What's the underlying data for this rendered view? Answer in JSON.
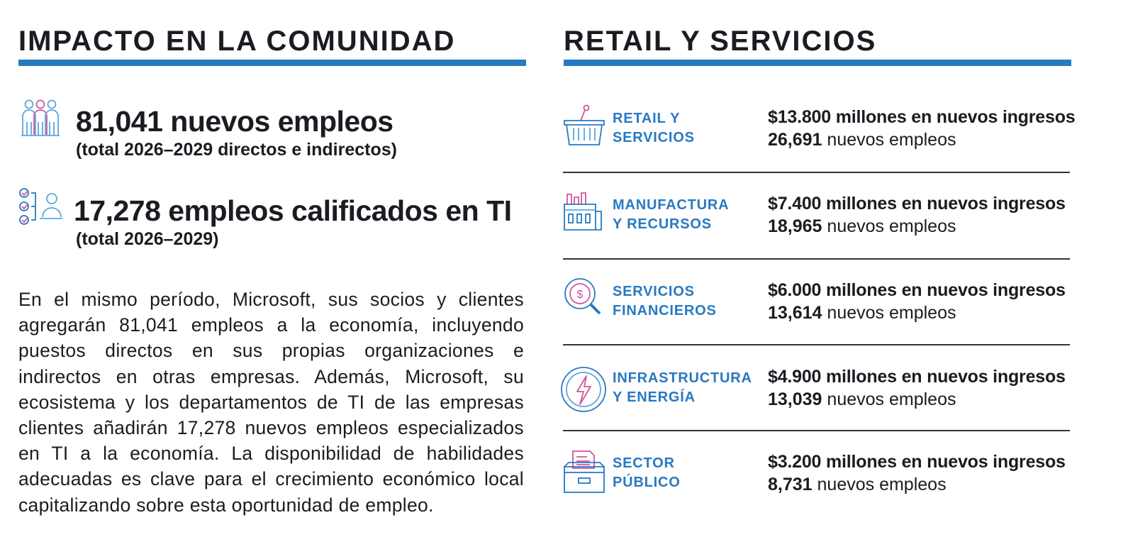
{
  "left": {
    "title": "IMPACTO EN LA COMUNIDAD",
    "stats": [
      {
        "headline": "81,041 nuevos empleos",
        "sub": "(total 2026–2029 directos e indirectos)",
        "icon": "people-icon"
      },
      {
        "headline": "17,278 empleos calificados en TI",
        "sub": "(total 2026–2029)",
        "icon": "checklist-user-icon"
      }
    ],
    "paragraph": "En el mismo período, Microsoft, sus socios y clientes agregarán 81,041 empleos a la economía, incluyen­do puestos directos en sus propias organizaciones e indirectos en otras empresas. Además, Microsoft, su ecosistema y los departamentos de TI de las empresas clientes añadirán 17,278 nuevos empleos especializados en TI a la economía. La disponibili­dad de habilidades adecuadas es clave para el crecimiento económico local capitalizando sobre esta oportunidad de empleo."
  },
  "right": {
    "title": "RETAIL Y SERVICIOS",
    "sectors": [
      {
        "name_line1": "RETAIL Y",
        "name_line2": "SERVICIOS",
        "revenue": "$13.800 millones en nuevos ingresos",
        "jobs_number": "26,691",
        "jobs_label": " nuevos empleos",
        "icon": "shopping-basket-icon"
      },
      {
        "name_line1": "MANUFACTURA",
        "name_line2": "Y RECURSOS",
        "revenue": "$7.400 millones en nuevos ingresos",
        "jobs_number": "18,965",
        "jobs_label": " nuevos empleos",
        "icon": "factory-icon"
      },
      {
        "name_line1": "SERVICIOS",
        "name_line2": "FINANCIEROS",
        "revenue": "$6.000 millones en nuevos ingresos",
        "jobs_number": "13,614",
        "jobs_label": " nuevos empleos",
        "icon": "magnifier-dollar-icon"
      },
      {
        "name_line1": "INFRASTRUCTURA",
        "name_line2": "Y ENERGÍA",
        "revenue": "$4.900 millones en nuevos ingresos",
        "jobs_number": "13,039",
        "jobs_label": " nuevos empleos",
        "icon": "lightning-bolt-icon"
      },
      {
        "name_line1": "SECTOR",
        "name_line2": "PÚBLICO",
        "revenue": "$3.200 millones en nuevos ingresos",
        "jobs_number": "8,731",
        "jobs_label": " nuevos empleos",
        "icon": "file-drawer-icon"
      }
    ]
  },
  "colors": {
    "accent_blue": "#2779c2",
    "accent_pink": "#d0569a",
    "light_blue": "#5aa7dc",
    "text": "#1b1b22"
  }
}
